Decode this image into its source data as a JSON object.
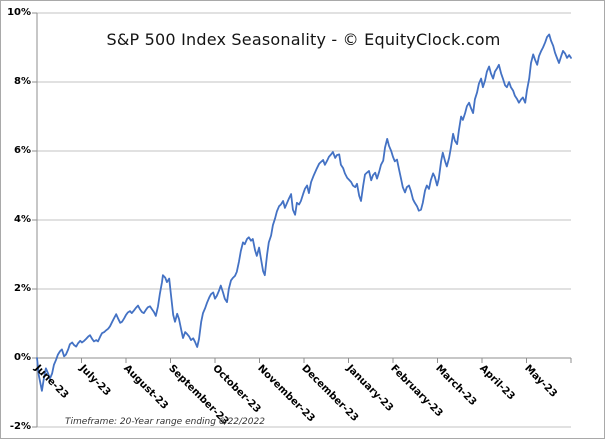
{
  "chart_data": {
    "type": "line",
    "title": "S&P 500 Index Seasonality - © EquityClock.com",
    "footnote": "Timeframe: 20-Year range ending 6/22/2022",
    "x_tick_labels": [
      "June-23",
      "July-23",
      "August-23",
      "September-23",
      "October-23",
      "November-23",
      "December-23",
      "January-23",
      "February-23",
      "March-23",
      "April-23",
      "May-23"
    ],
    "y_ticks": [
      "10%",
      "8%",
      "6%",
      "4%",
      "2%",
      "0%",
      "-2%"
    ],
    "y_tick_values": [
      10,
      8,
      6,
      4,
      2,
      0,
      -2
    ],
    "ylim": [
      -2,
      10
    ],
    "xlim_months": [
      0,
      12
    ],
    "grid": "horizontal",
    "legend": "none",
    "series": [
      {
        "name": "S&P 500 Index 20-year average seasonal gain (%)",
        "x_unit": "months from June 1",
        "points": [
          [
            0,
            0
          ],
          [
            0.04,
            -0.5
          ],
          [
            0.11,
            -0.95
          ],
          [
            0.16,
            -0.55
          ],
          [
            0.2,
            -0.3
          ],
          [
            0.25,
            -0.45
          ],
          [
            0.29,
            -0.6
          ],
          [
            0.34,
            -0.45
          ],
          [
            0.38,
            -0.2
          ],
          [
            0.43,
            -0.05
          ],
          [
            0.47,
            0.1
          ],
          [
            0.52,
            0.2
          ],
          [
            0.56,
            0.25
          ],
          [
            0.61,
            0.05
          ],
          [
            0.65,
            0.1
          ],
          [
            0.7,
            0.25
          ],
          [
            0.74,
            0.4
          ],
          [
            0.79,
            0.45
          ],
          [
            0.83,
            0.38
          ],
          [
            0.88,
            0.33
          ],
          [
            0.92,
            0.42
          ],
          [
            0.97,
            0.5
          ],
          [
            1.01,
            0.45
          ],
          [
            1.06,
            0.5
          ],
          [
            1.1,
            0.55
          ],
          [
            1.15,
            0.62
          ],
          [
            1.19,
            0.66
          ],
          [
            1.24,
            0.55
          ],
          [
            1.28,
            0.48
          ],
          [
            1.33,
            0.52
          ],
          [
            1.37,
            0.48
          ],
          [
            1.42,
            0.62
          ],
          [
            1.46,
            0.72
          ],
          [
            1.51,
            0.75
          ],
          [
            1.55,
            0.8
          ],
          [
            1.6,
            0.85
          ],
          [
            1.64,
            0.92
          ],
          [
            1.69,
            1.05
          ],
          [
            1.73,
            1.15
          ],
          [
            1.78,
            1.27
          ],
          [
            1.82,
            1.15
          ],
          [
            1.87,
            1.02
          ],
          [
            1.91,
            1.05
          ],
          [
            1.96,
            1.15
          ],
          [
            2,
            1.25
          ],
          [
            2.04,
            1.32
          ],
          [
            2.09,
            1.36
          ],
          [
            2.13,
            1.3
          ],
          [
            2.18,
            1.38
          ],
          [
            2.22,
            1.45
          ],
          [
            2.27,
            1.52
          ],
          [
            2.31,
            1.42
          ],
          [
            2.36,
            1.33
          ],
          [
            2.4,
            1.3
          ],
          [
            2.45,
            1.4
          ],
          [
            2.49,
            1.47
          ],
          [
            2.54,
            1.5
          ],
          [
            2.58,
            1.42
          ],
          [
            2.63,
            1.33
          ],
          [
            2.67,
            1.22
          ],
          [
            2.72,
            1.5
          ],
          [
            2.76,
            1.85
          ],
          [
            2.81,
            2.2
          ],
          [
            2.83,
            2.4
          ],
          [
            2.88,
            2.33
          ],
          [
            2.92,
            2.2
          ],
          [
            2.97,
            2.3
          ],
          [
            3.01,
            1.85
          ],
          [
            3.06,
            1.25
          ],
          [
            3.1,
            1.05
          ],
          [
            3.15,
            1.28
          ],
          [
            3.19,
            1.13
          ],
          [
            3.24,
            0.82
          ],
          [
            3.28,
            0.58
          ],
          [
            3.33,
            0.75
          ],
          [
            3.37,
            0.7
          ],
          [
            3.42,
            0.62
          ],
          [
            3.46,
            0.52
          ],
          [
            3.51,
            0.57
          ],
          [
            3.55,
            0.47
          ],
          [
            3.6,
            0.32
          ],
          [
            3.64,
            0.55
          ],
          [
            3.69,
            1.05
          ],
          [
            3.73,
            1.3
          ],
          [
            3.78,
            1.45
          ],
          [
            3.82,
            1.6
          ],
          [
            3.87,
            1.75
          ],
          [
            3.91,
            1.85
          ],
          [
            3.96,
            1.9
          ],
          [
            4,
            1.72
          ],
          [
            4.04,
            1.8
          ],
          [
            4.09,
            1.95
          ],
          [
            4.13,
            2.1
          ],
          [
            4.18,
            1.9
          ],
          [
            4.22,
            1.72
          ],
          [
            4.27,
            1.62
          ],
          [
            4.31,
            2
          ],
          [
            4.36,
            2.25
          ],
          [
            4.4,
            2.32
          ],
          [
            4.45,
            2.38
          ],
          [
            4.49,
            2.5
          ],
          [
            4.54,
            2.8
          ],
          [
            4.58,
            3.1
          ],
          [
            4.63,
            3.35
          ],
          [
            4.67,
            3.3
          ],
          [
            4.72,
            3.45
          ],
          [
            4.76,
            3.5
          ],
          [
            4.81,
            3.4
          ],
          [
            4.85,
            3.45
          ],
          [
            4.9,
            3.12
          ],
          [
            4.94,
            2.96
          ],
          [
            4.99,
            3.2
          ],
          [
            5.03,
            2.9
          ],
          [
            5.08,
            2.52
          ],
          [
            5.12,
            2.4
          ],
          [
            5.17,
            3
          ],
          [
            5.21,
            3.35
          ],
          [
            5.26,
            3.55
          ],
          [
            5.3,
            3.85
          ],
          [
            5.35,
            4.05
          ],
          [
            5.39,
            4.25
          ],
          [
            5.44,
            4.4
          ],
          [
            5.48,
            4.45
          ],
          [
            5.53,
            4.55
          ],
          [
            5.57,
            4.35
          ],
          [
            5.62,
            4.5
          ],
          [
            5.66,
            4.62
          ],
          [
            5.71,
            4.75
          ],
          [
            5.75,
            4.3
          ],
          [
            5.8,
            4.15
          ],
          [
            5.84,
            4.5
          ],
          [
            5.89,
            4.45
          ],
          [
            5.93,
            4.55
          ],
          [
            5.98,
            4.75
          ],
          [
            6.02,
            4.9
          ],
          [
            6.07,
            5
          ],
          [
            6.11,
            4.78
          ],
          [
            6.16,
            5.1
          ],
          [
            6.22,
            5.3
          ],
          [
            6.29,
            5.5
          ],
          [
            6.34,
            5.63
          ],
          [
            6.38,
            5.68
          ],
          [
            6.43,
            5.74
          ],
          [
            6.47,
            5.6
          ],
          [
            6.52,
            5.72
          ],
          [
            6.56,
            5.83
          ],
          [
            6.61,
            5.9
          ],
          [
            6.65,
            5.97
          ],
          [
            6.7,
            5.8
          ],
          [
            6.74,
            5.88
          ],
          [
            6.79,
            5.9
          ],
          [
            6.83,
            5.6
          ],
          [
            6.88,
            5.5
          ],
          [
            6.92,
            5.35
          ],
          [
            6.97,
            5.22
          ],
          [
            7.01,
            5.17
          ],
          [
            7.06,
            5.1
          ],
          [
            7.1,
            5
          ],
          [
            7.15,
            4.95
          ],
          [
            7.19,
            5.05
          ],
          [
            7.24,
            4.7
          ],
          [
            7.28,
            4.55
          ],
          [
            7.33,
            5
          ],
          [
            7.37,
            5.32
          ],
          [
            7.42,
            5.38
          ],
          [
            7.46,
            5.42
          ],
          [
            7.51,
            5.15
          ],
          [
            7.55,
            5.3
          ],
          [
            7.6,
            5.37
          ],
          [
            7.64,
            5.2
          ],
          [
            7.69,
            5.4
          ],
          [
            7.73,
            5.6
          ],
          [
            7.78,
            5.72
          ],
          [
            7.82,
            6.1
          ],
          [
            7.87,
            6.35
          ],
          [
            7.91,
            6.15
          ],
          [
            7.96,
            6
          ],
          [
            8,
            5.83
          ],
          [
            8.04,
            5.7
          ],
          [
            8.09,
            5.75
          ],
          [
            8.13,
            5.5
          ],
          [
            8.18,
            5.2
          ],
          [
            8.22,
            4.95
          ],
          [
            8.27,
            4.8
          ],
          [
            8.31,
            4.95
          ],
          [
            8.36,
            5
          ],
          [
            8.4,
            4.85
          ],
          [
            8.45,
            4.6
          ],
          [
            8.49,
            4.5
          ],
          [
            8.54,
            4.4
          ],
          [
            8.58,
            4.27
          ],
          [
            8.63,
            4.3
          ],
          [
            8.67,
            4.5
          ],
          [
            8.72,
            4.85
          ],
          [
            8.76,
            5
          ],
          [
            8.81,
            4.9
          ],
          [
            8.85,
            5.15
          ],
          [
            8.9,
            5.35
          ],
          [
            8.94,
            5.25
          ],
          [
            8.99,
            5
          ],
          [
            9.03,
            5.2
          ],
          [
            9.08,
            5.7
          ],
          [
            9.12,
            5.95
          ],
          [
            9.17,
            5.7
          ],
          [
            9.21,
            5.55
          ],
          [
            9.26,
            5.8
          ],
          [
            9.3,
            6.1
          ],
          [
            9.35,
            6.5
          ],
          [
            9.39,
            6.3
          ],
          [
            9.44,
            6.2
          ],
          [
            9.48,
            6.6
          ],
          [
            9.53,
            7
          ],
          [
            9.57,
            6.9
          ],
          [
            9.62,
            7.1
          ],
          [
            9.66,
            7.3
          ],
          [
            9.71,
            7.4
          ],
          [
            9.75,
            7.25
          ],
          [
            9.8,
            7.1
          ],
          [
            9.84,
            7.5
          ],
          [
            9.89,
            7.7
          ],
          [
            9.93,
            7.95
          ],
          [
            9.98,
            8.1
          ],
          [
            10.02,
            7.85
          ],
          [
            10.07,
            8.05
          ],
          [
            10.11,
            8.3
          ],
          [
            10.16,
            8.45
          ],
          [
            10.2,
            8.25
          ],
          [
            10.25,
            8.1
          ],
          [
            10.29,
            8.3
          ],
          [
            10.34,
            8.4
          ],
          [
            10.38,
            8.5
          ],
          [
            10.43,
            8.25
          ],
          [
            10.47,
            8.1
          ],
          [
            10.52,
            7.9
          ],
          [
            10.56,
            7.85
          ],
          [
            10.61,
            8
          ],
          [
            10.65,
            7.85
          ],
          [
            10.7,
            7.75
          ],
          [
            10.74,
            7.6
          ],
          [
            10.79,
            7.5
          ],
          [
            10.83,
            7.4
          ],
          [
            10.88,
            7.5
          ],
          [
            10.92,
            7.55
          ],
          [
            10.97,
            7.4
          ],
          [
            11.01,
            7.75
          ],
          [
            11.06,
            8.1
          ],
          [
            11.1,
            8.55
          ],
          [
            11.15,
            8.8
          ],
          [
            11.19,
            8.65
          ],
          [
            11.24,
            8.5
          ],
          [
            11.28,
            8.75
          ],
          [
            11.33,
            8.9
          ],
          [
            11.37,
            9
          ],
          [
            11.42,
            9.15
          ],
          [
            11.46,
            9.3
          ],
          [
            11.51,
            9.38
          ],
          [
            11.55,
            9.2
          ],
          [
            11.6,
            9.05
          ],
          [
            11.64,
            8.85
          ],
          [
            11.69,
            8.68
          ],
          [
            11.73,
            8.55
          ],
          [
            11.78,
            8.75
          ],
          [
            11.82,
            8.9
          ],
          [
            11.87,
            8.82
          ],
          [
            11.91,
            8.7
          ],
          [
            11.96,
            8.78
          ],
          [
            12,
            8.7
          ]
        ]
      }
    ],
    "colors": {
      "line": "#4472C4",
      "gridline": "#C3C3C3",
      "axis": "#8F8F8F",
      "border": "#A9A9A9",
      "background": "#FFFFFF"
    }
  }
}
